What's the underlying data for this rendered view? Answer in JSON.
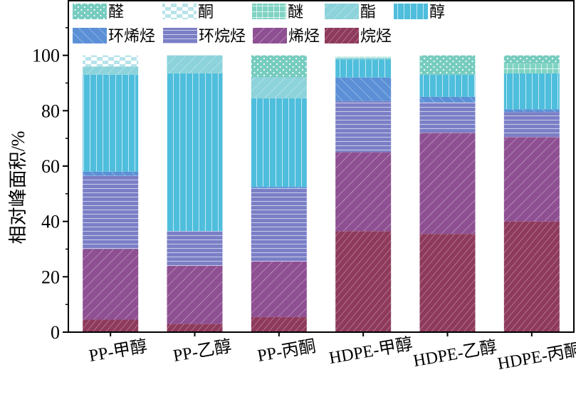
{
  "chart_data": {
    "type": "bar",
    "stacked": true,
    "ylabel": "相对峰面积/%",
    "ylim": [
      0,
      120
    ],
    "yticks": [
      0,
      20,
      40,
      60,
      80,
      100
    ],
    "grid": false,
    "legend_position": "top",
    "categories": [
      "PP-甲醇",
      "PP-乙醇",
      "PP-丙酮",
      "HDPE-甲醇",
      "HDPE-乙醇",
      "HDPE-丙酮"
    ],
    "series": [
      {
        "name": "烷烃",
        "key": "alkane",
        "color": "#8e3a5c",
        "pattern": "diag-fine",
        "values": [
          4.5,
          3.0,
          5.5,
          36.5,
          35.5,
          40.0
        ]
      },
      {
        "name": "烯烃",
        "key": "olefin",
        "color": "#8e5092",
        "pattern": "diag-coarse",
        "values": [
          25.5,
          21.0,
          20.0,
          28.5,
          36.5,
          30.5
        ]
      },
      {
        "name": "环烷烃",
        "key": "cycloalkane",
        "color": "#7b7fc6",
        "pattern": "hlines",
        "values": [
          26.5,
          12.5,
          26.5,
          18.5,
          11.0,
          9.0
        ]
      },
      {
        "name": "环烯烃",
        "key": "cycloolefin",
        "color": "#5b90d6",
        "pattern": "diag-up",
        "values": [
          1.5,
          0.0,
          0.5,
          8.5,
          2.0,
          1.0
        ]
      },
      {
        "name": "醇",
        "key": "alcohol",
        "color": "#4fbedc",
        "pattern": "vlines",
        "values": [
          35.0,
          57.0,
          32.0,
          6.5,
          8.0,
          13.0
        ]
      },
      {
        "name": "酯",
        "key": "ester",
        "color": "#8cd3db",
        "pattern": "diag-coarse",
        "values": [
          3.0,
          6.5,
          7.5,
          0.5,
          0.0,
          0.0
        ]
      },
      {
        "name": "醚",
        "key": "ether",
        "color": "#7fd3c3",
        "pattern": "grid",
        "values": [
          0.0,
          0.0,
          0.0,
          0.5,
          0.0,
          3.5
        ]
      },
      {
        "name": "酮",
        "key": "ketone",
        "color": "#b8e3ea",
        "pattern": "checker",
        "values": [
          4.0,
          0.0,
          0.0,
          0.0,
          0.0,
          0.0
        ]
      },
      {
        "name": "醛",
        "key": "aldehyde",
        "color": "#76ccbf",
        "pattern": "dots",
        "values": [
          0.0,
          0.0,
          8.0,
          0.0,
          7.0,
          3.0
        ]
      }
    ],
    "legend_rows": [
      [
        "aldehyde",
        "ketone",
        "ether",
        "ester",
        "alcohol"
      ],
      [
        "cycloolefin",
        "cycloalkane",
        "olefin",
        "alkane"
      ]
    ]
  }
}
